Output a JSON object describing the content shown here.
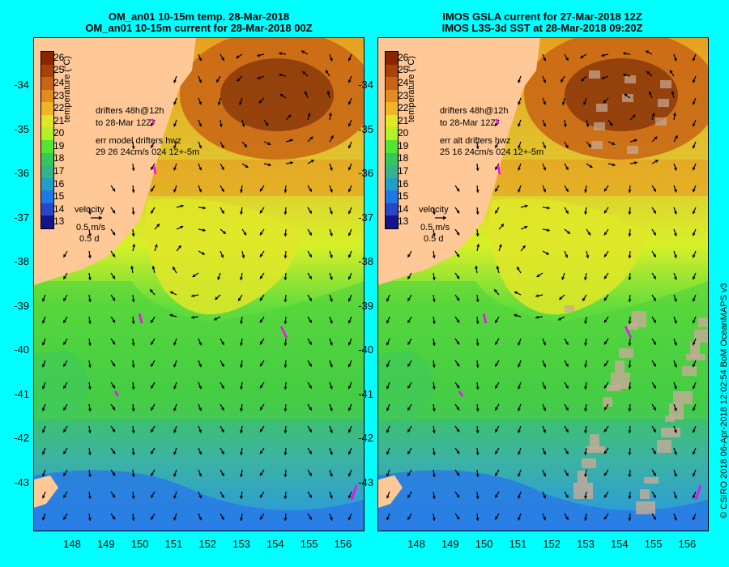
{
  "panels": [
    {
      "title_line1": "OM_an01 10-15m temp. 28-Mar-2018",
      "title_line2": "OM_an01 10-15m current for 28-Mar-2018 00Z",
      "colorbar_label": "temperature (°C)",
      "drifters_line1": "drifters 48h@12h",
      "drifters_line2": "to 28-Mar 12Z",
      "err_line1": "err model drifters hwz",
      "err_line2": "29 26 24cm/s 024 12+-5m",
      "velocity_title": "velocity",
      "velocity_speed": "0.5 m/s",
      "velocity_time": "0.5 d"
    },
    {
      "title_line1": "IMOS GSLA current for 27-Mar-2018 12Z",
      "title_line2": "IMOS L3S-3d SST at 28-Mar-2018 09:20Z",
      "colorbar_label": "temperature (°C)",
      "drifters_line1": "drifters 48h@12h",
      "drifters_line2": "to 28-Mar 12Z",
      "err_line1": "err alt drifters hwz",
      "err_line2": "25 16 24cm/s 024 12+-5m",
      "velocity_title": "velocity",
      "velocity_speed": "0.5 m/s",
      "velocity_time": "0.5 d"
    }
  ],
  "colorbar_ticks": [
    "26",
    "25",
    "24",
    "23",
    "22",
    "21",
    "20",
    "19",
    "18",
    "17",
    "16",
    "15",
    "14",
    "13"
  ],
  "colorbar_colors": [
    "#8b2500",
    "#a8420a",
    "#c86414",
    "#e08c1e",
    "#f0b428",
    "#e0e628",
    "#b4f028",
    "#50e632",
    "#32c85a",
    "#32b48c",
    "#1ea0c8",
    "#1e78e6",
    "#2846c8",
    "#14148c"
  ],
  "lat_labels": [
    "-34",
    "-35",
    "-36",
    "-37",
    "-38",
    "-39",
    "-40",
    "-41",
    "-42",
    "-43"
  ],
  "lon_labels": [
    "148",
    "149",
    "150",
    "151",
    "152",
    "153",
    "154",
    "155",
    "156"
  ],
  "credit": "© CSIRO 2018   06-Apr-2018 12:02:54 BoM OceanMAPS v3",
  "colors": {
    "background": "#00ffff",
    "land": "#ffc896",
    "no_data": "#c8aa96",
    "arrow": "#000000",
    "drifter": "#ff00ff"
  }
}
